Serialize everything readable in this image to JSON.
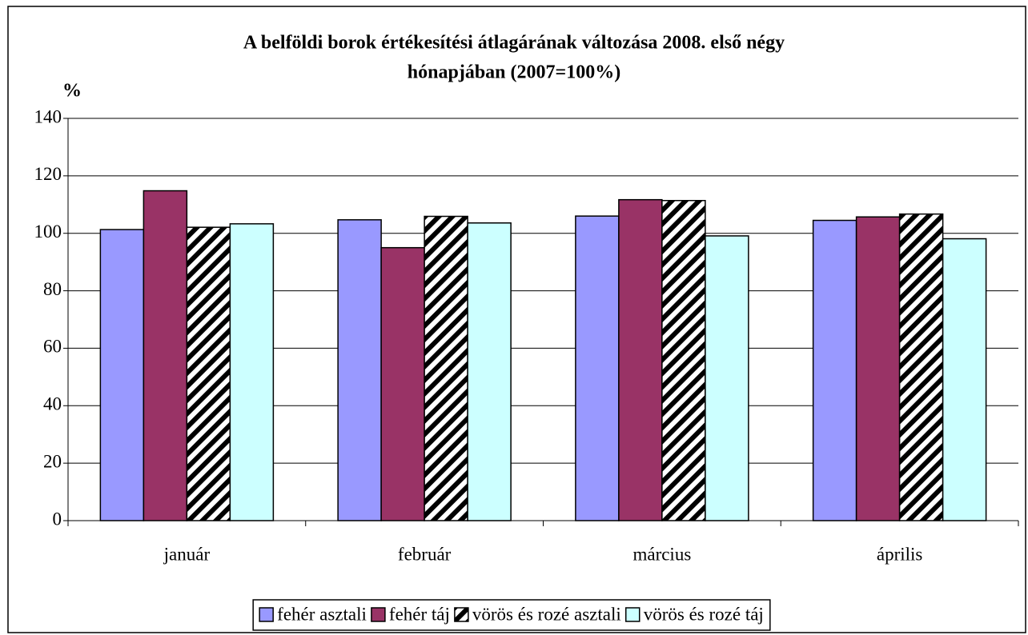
{
  "chart_data": {
    "type": "bar",
    "title": [
      "A belföldi borok értékesítési átlagárának változása 2008. első négy",
      "hónapjában (2007=100%)"
    ],
    "y_label": "%",
    "categories": [
      "január",
      "február",
      "március",
      "április"
    ],
    "series": [
      {
        "name": "fehér asztali",
        "color": "#9999ff",
        "values": [
          101.3,
          104.7,
          106.0,
          104.5
        ]
      },
      {
        "name": "fehér táj",
        "color": "#993366",
        "values": [
          114.8,
          95.0,
          111.7,
          105.7
        ]
      },
      {
        "name": "vörös és rozé asztali",
        "color": "#ffffff",
        "hatch": true,
        "values": [
          102.1,
          105.9,
          111.4,
          106.7
        ]
      },
      {
        "name": "vörös és rozé táj",
        "color": "#ccffff",
        "values": [
          103.3,
          103.6,
          99.1,
          98.1
        ]
      }
    ],
    "ylim": [
      0,
      140
    ],
    "yticks": [
      0,
      20,
      40,
      60,
      80,
      100,
      120,
      140
    ],
    "grid": true,
    "legend": "bottom"
  }
}
